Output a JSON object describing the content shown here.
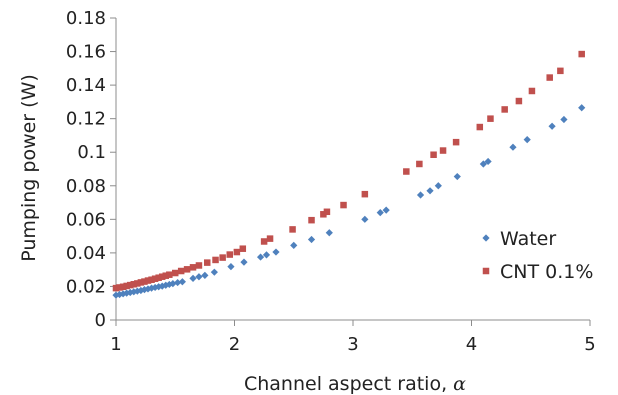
{
  "chart_data": {
    "type": "scatter",
    "xlabel": "Channel aspect ratio, ",
    "xlabel_symbol": "α",
    "ylabel": "Pumping power (W)",
    "xlim": [
      1,
      5
    ],
    "ylim": [
      0,
      0.18
    ],
    "x_ticks": [
      "1",
      "2",
      "3",
      "4",
      "5"
    ],
    "y_ticks": [
      "0",
      "0.02",
      "0.04",
      "0.06",
      "0.08",
      "0.1",
      "0.12",
      "0.14",
      "0.16",
      "0.18"
    ],
    "x_tick_values": [
      1,
      2,
      3,
      4,
      5
    ],
    "y_tick_values": [
      0,
      0.02,
      0.04,
      0.06,
      0.08,
      0.1,
      0.12,
      0.14,
      0.16,
      0.18
    ],
    "grid": false,
    "legend_position": "bottom-right",
    "series": [
      {
        "name": "Water",
        "marker": "diamond",
        "color": "#4F81BD",
        "points": [
          [
            1.0,
            0.0148
          ],
          [
            1.03,
            0.0152
          ],
          [
            1.06,
            0.0156
          ],
          [
            1.09,
            0.016
          ],
          [
            1.12,
            0.0164
          ],
          [
            1.15,
            0.0168
          ],
          [
            1.18,
            0.0172
          ],
          [
            1.21,
            0.0176
          ],
          [
            1.24,
            0.0181
          ],
          [
            1.27,
            0.0185
          ],
          [
            1.3,
            0.019
          ],
          [
            1.33,
            0.0194
          ],
          [
            1.36,
            0.0198
          ],
          [
            1.39,
            0.0202
          ],
          [
            1.42,
            0.0207
          ],
          [
            1.45,
            0.0212
          ],
          [
            1.48,
            0.0217
          ],
          [
            1.52,
            0.0223
          ],
          [
            1.56,
            0.0228
          ],
          [
            1.65,
            0.0248
          ],
          [
            1.7,
            0.0258
          ],
          [
            1.75,
            0.0266
          ],
          [
            1.83,
            0.0285
          ],
          [
            1.97,
            0.0318
          ],
          [
            2.08,
            0.0345
          ],
          [
            2.22,
            0.0375
          ],
          [
            2.27,
            0.0388
          ],
          [
            2.35,
            0.0405
          ],
          [
            2.5,
            0.0445
          ],
          [
            2.65,
            0.048
          ],
          [
            2.8,
            0.052
          ],
          [
            3.1,
            0.06
          ],
          [
            3.23,
            0.064
          ],
          [
            3.28,
            0.0655
          ],
          [
            3.57,
            0.0745
          ],
          [
            3.65,
            0.077
          ],
          [
            3.72,
            0.08
          ],
          [
            3.88,
            0.0855
          ],
          [
            4.1,
            0.093
          ],
          [
            4.14,
            0.0945
          ],
          [
            4.35,
            0.103
          ],
          [
            4.47,
            0.1075
          ],
          [
            4.68,
            0.1155
          ],
          [
            4.78,
            0.1195
          ],
          [
            4.93,
            0.1265
          ]
        ]
      },
      {
        "name": "CNT 0.1%",
        "marker": "square",
        "color": "#C0504D",
        "points": [
          [
            1.0,
            0.019
          ],
          [
            1.03,
            0.0194
          ],
          [
            1.06,
            0.0198
          ],
          [
            1.09,
            0.0203
          ],
          [
            1.12,
            0.0208
          ],
          [
            1.15,
            0.0213
          ],
          [
            1.18,
            0.0218
          ],
          [
            1.21,
            0.0224
          ],
          [
            1.24,
            0.0229
          ],
          [
            1.27,
            0.0235
          ],
          [
            1.3,
            0.024
          ],
          [
            1.33,
            0.0246
          ],
          [
            1.36,
            0.0252
          ],
          [
            1.39,
            0.0258
          ],
          [
            1.42,
            0.0264
          ],
          [
            1.45,
            0.027
          ],
          [
            1.5,
            0.028
          ],
          [
            1.55,
            0.0292
          ],
          [
            1.6,
            0.0302
          ],
          [
            1.65,
            0.0314
          ],
          [
            1.7,
            0.0325
          ],
          [
            1.77,
            0.0342
          ],
          [
            1.84,
            0.0358
          ],
          [
            1.9,
            0.0372
          ],
          [
            1.96,
            0.039
          ],
          [
            2.02,
            0.0405
          ],
          [
            2.07,
            0.0425
          ],
          [
            2.25,
            0.0468
          ],
          [
            2.3,
            0.0485
          ],
          [
            2.49,
            0.054
          ],
          [
            2.65,
            0.0595
          ],
          [
            2.75,
            0.063
          ],
          [
            2.78,
            0.0645
          ],
          [
            2.92,
            0.0685
          ],
          [
            3.1,
            0.075
          ],
          [
            3.45,
            0.0885
          ],
          [
            3.56,
            0.093
          ],
          [
            3.68,
            0.0985
          ],
          [
            3.76,
            0.101
          ],
          [
            3.87,
            0.106
          ],
          [
            4.07,
            0.115
          ],
          [
            4.16,
            0.12
          ],
          [
            4.28,
            0.1255
          ],
          [
            4.4,
            0.1305
          ],
          [
            4.51,
            0.1365
          ],
          [
            4.66,
            0.1445
          ],
          [
            4.75,
            0.1485
          ],
          [
            4.93,
            0.1585
          ]
        ]
      }
    ]
  }
}
